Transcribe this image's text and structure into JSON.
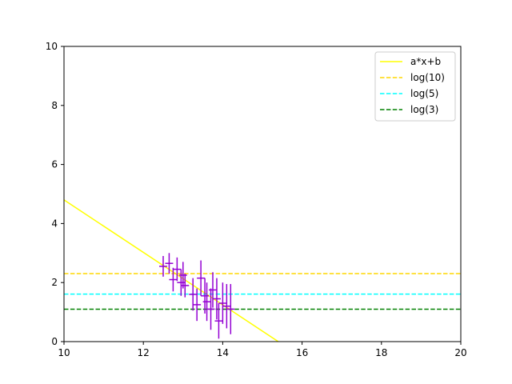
{
  "chart_data": {
    "type": "scatter",
    "title": "",
    "xlabel": "",
    "ylabel": "",
    "xlim": [
      10,
      20
    ],
    "ylim": [
      0,
      10
    ],
    "x_ticks": [
      10,
      12,
      14,
      16,
      18,
      20
    ],
    "y_ticks": [
      0,
      2,
      4,
      6,
      8,
      10
    ],
    "grid": false,
    "legend_placement": "top-right",
    "series": [
      {
        "name": "a*x+b",
        "kind": "line",
        "color": "#ffff00",
        "style": "solid",
        "x": [
          10,
          15.4
        ],
        "y": [
          4.8,
          0
        ]
      },
      {
        "name": "log(10)",
        "kind": "hline",
        "color": "#ffd700",
        "style": "dashed",
        "y": 2.303
      },
      {
        "name": "log(5)",
        "kind": "hline",
        "color": "#00ffff",
        "style": "dashed",
        "y": 1.609
      },
      {
        "name": "log(3)",
        "kind": "hline",
        "color": "#008000",
        "style": "dashed",
        "y": 1.099
      }
    ],
    "errorbar_series": {
      "color": "#9400d3",
      "points": [
        {
          "x": 12.5,
          "y": 2.55,
          "xerr": 0.1,
          "yerr": 0.35
        },
        {
          "x": 12.65,
          "y": 2.65,
          "xerr": 0.1,
          "yerr": 0.35
        },
        {
          "x": 12.75,
          "y": 2.1,
          "xerr": 0.1,
          "yerr": 0.4
        },
        {
          "x": 12.85,
          "y": 2.45,
          "xerr": 0.1,
          "yerr": 0.4
        },
        {
          "x": 12.95,
          "y": 2.0,
          "xerr": 0.1,
          "yerr": 0.45
        },
        {
          "x": 13.0,
          "y": 2.25,
          "xerr": 0.1,
          "yerr": 0.45
        },
        {
          "x": 13.05,
          "y": 1.9,
          "xerr": 0.1,
          "yerr": 0.4
        },
        {
          "x": 13.25,
          "y": 1.6,
          "xerr": 0.1,
          "yerr": 0.55
        },
        {
          "x": 13.35,
          "y": 1.25,
          "xerr": 0.1,
          "yerr": 0.55
        },
        {
          "x": 13.45,
          "y": 2.15,
          "xerr": 0.1,
          "yerr": 0.6
        },
        {
          "x": 13.55,
          "y": 1.55,
          "xerr": 0.1,
          "yerr": 0.6
        },
        {
          "x": 13.6,
          "y": 1.35,
          "xerr": 0.1,
          "yerr": 0.65
        },
        {
          "x": 13.7,
          "y": 1.1,
          "xerr": 0.1,
          "yerr": 0.7
        },
        {
          "x": 13.75,
          "y": 1.75,
          "xerr": 0.1,
          "yerr": 0.6
        },
        {
          "x": 13.85,
          "y": 1.45,
          "xerr": 0.1,
          "yerr": 0.7
        },
        {
          "x": 13.9,
          "y": 0.7,
          "xerr": 0.1,
          "yerr": 0.6
        },
        {
          "x": 14.0,
          "y": 1.3,
          "xerr": 0.1,
          "yerr": 0.7
        },
        {
          "x": 14.1,
          "y": 1.2,
          "xerr": 0.1,
          "yerr": 0.75
        },
        {
          "x": 14.2,
          "y": 1.1,
          "xerr": 0.1,
          "yerr": 0.85
        }
      ]
    }
  }
}
